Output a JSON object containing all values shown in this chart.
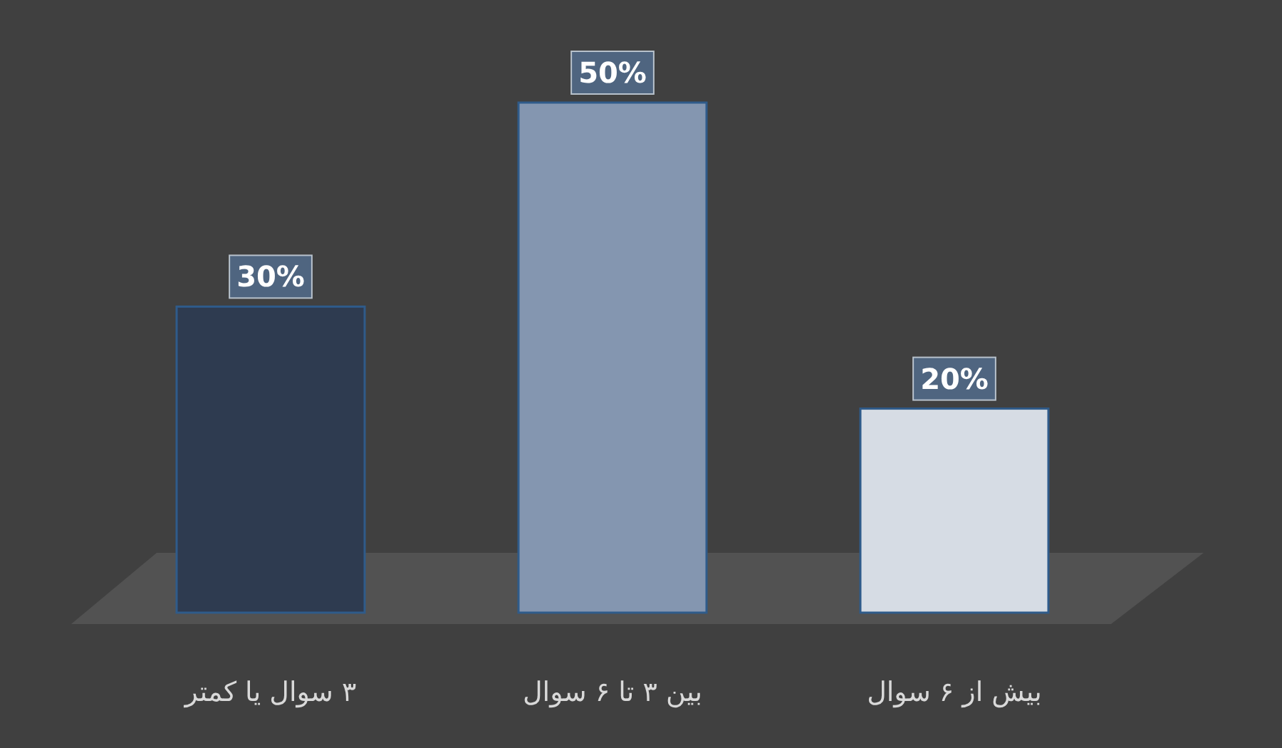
{
  "chart_data": {
    "type": "bar",
    "categories": [
      "۳ سوال یا کمتر",
      "بین ۳ تا ۶ سوال",
      "بیش از ۶ سوال"
    ],
    "values": [
      30,
      50,
      20
    ],
    "colors": [
      "#2e3b50",
      "#8496b0",
      "#d6dce4"
    ],
    "value_labels": [
      "30%",
      "50%",
      "20%"
    ]
  }
}
